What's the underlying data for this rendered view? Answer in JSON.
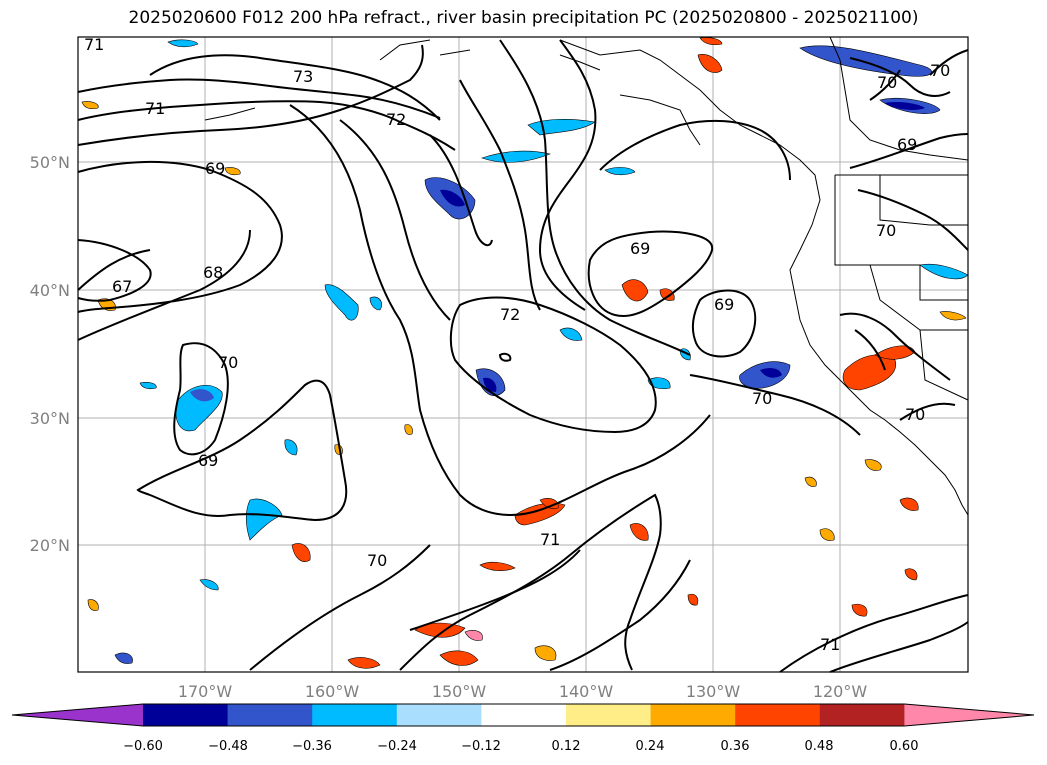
{
  "title": "2025020600 F012 200 hPa refract., river basin precipitation PC (2025020800 - 2025021100)",
  "map": {
    "lon_labels": [
      "170°W",
      "160°W",
      "150°W",
      "140°W",
      "130°W",
      "120°W"
    ],
    "lat_labels": [
      "50°N",
      "40°N",
      "30°N",
      "20°N"
    ],
    "contour_labels": [
      "71",
      "73",
      "71",
      "72",
      "69",
      "68",
      "67",
      "70",
      "69",
      "72",
      "69",
      "69",
      "70",
      "71",
      "70",
      "69",
      "70",
      "70",
      "70",
      "71",
      "70"
    ]
  },
  "colorbar": {
    "colors": [
      "#9933cc",
      "#000099",
      "#3355cc",
      "#00bbff",
      "#aadeff",
      "#ffffff",
      "#ffee88",
      "#ffaa00",
      "#ff4400",
      "#b22222",
      "#ff88aa"
    ],
    "tick_labels": [
      "−0.60",
      "−0.48",
      "−0.36",
      "−0.24",
      "−0.12",
      "0.12",
      "0.24",
      "0.36",
      "0.48",
      "0.60"
    ]
  }
}
